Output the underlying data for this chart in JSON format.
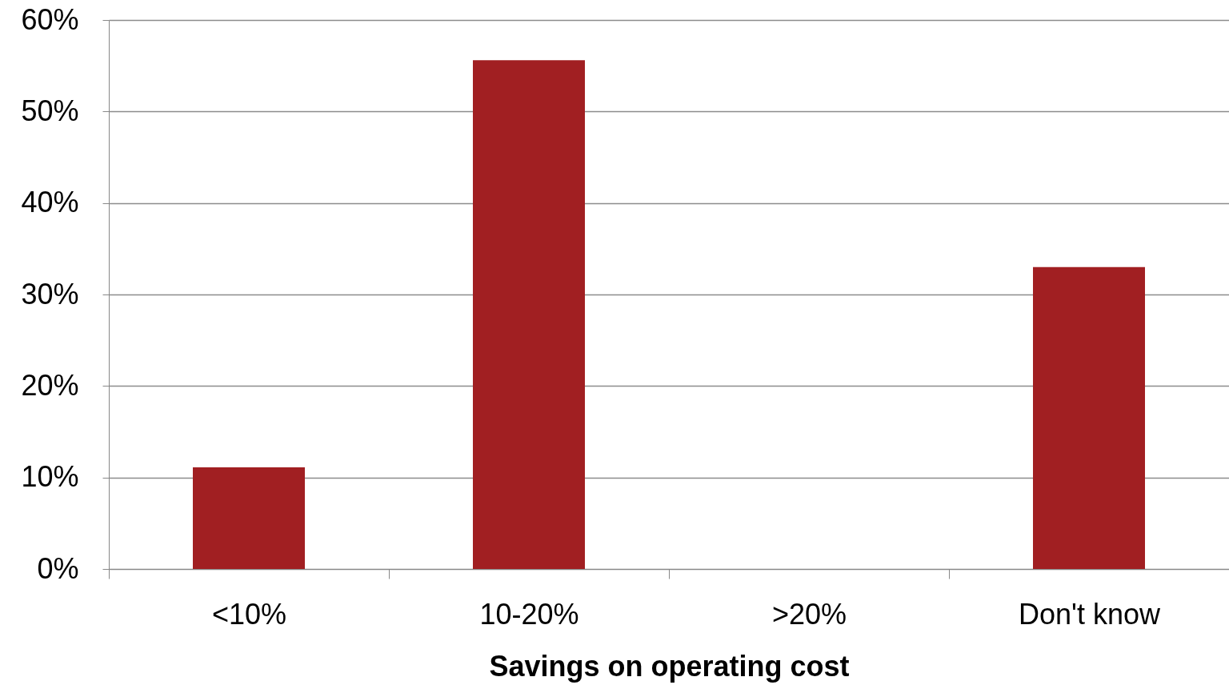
{
  "chart_data": {
    "type": "bar",
    "xlabel": "Savings on operating cost",
    "categories": [
      "<10%",
      "10-20%",
      ">20%",
      "Don't know"
    ],
    "values": [
      11.1,
      55.6,
      0,
      33.0
    ],
    "color": "#a11f22",
    "ylim": [
      0,
      60
    ],
    "yticks": [
      {
        "value": 0,
        "label": "0%"
      },
      {
        "value": 10,
        "label": "10%"
      },
      {
        "value": 20,
        "label": "20%"
      },
      {
        "value": 30,
        "label": "30%"
      },
      {
        "value": 40,
        "label": "40%"
      },
      {
        "value": 50,
        "label": "50%"
      },
      {
        "value": 60,
        "label": "60%"
      }
    ],
    "grid": "y"
  }
}
